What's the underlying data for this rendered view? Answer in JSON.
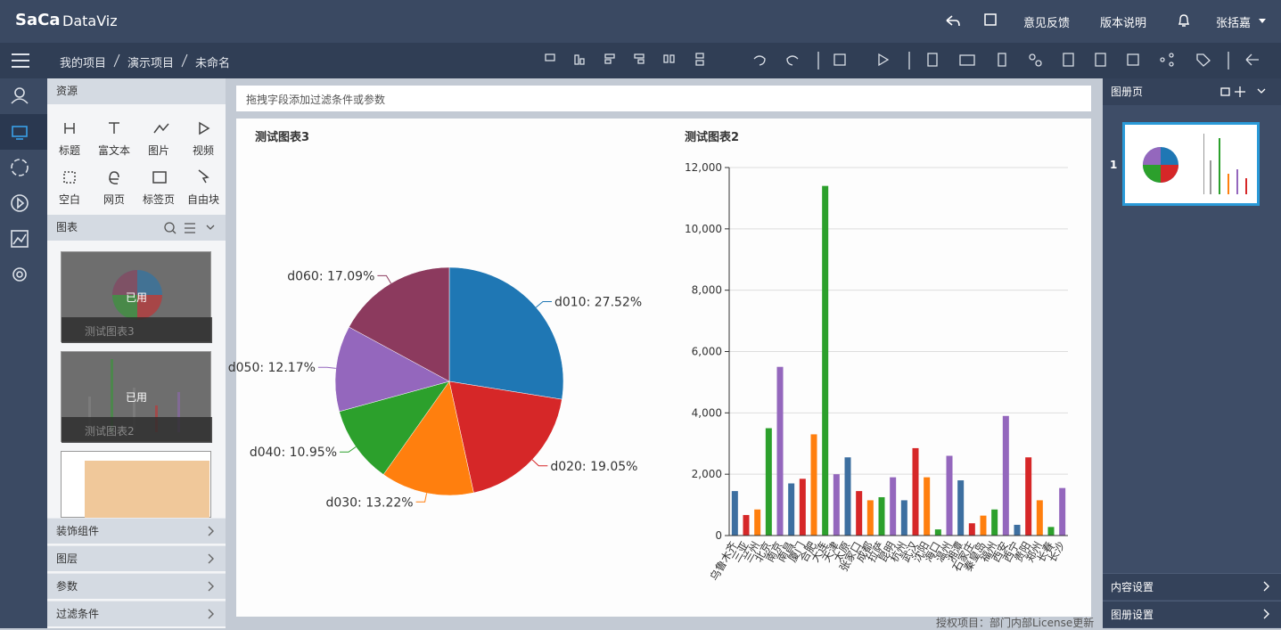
{
  "header": {
    "logo": "SaCa",
    "product": "DataViz",
    "links": [
      "意见反馈",
      "版本说明"
    ],
    "user": "张括嘉"
  },
  "breadcrumb": [
    "我的项目",
    "演示项目",
    "未命名"
  ],
  "resources": {
    "title": "资源",
    "items": [
      "标题",
      "富文本",
      "图片",
      "视频",
      "空白",
      "网页",
      "标签页",
      "自由块"
    ]
  },
  "charts_panel": {
    "title": "图表",
    "thumbnails": [
      {
        "badge": "已用",
        "name": "测试图表3"
      },
      {
        "badge": "已用",
        "name": "测试图表2"
      }
    ]
  },
  "sections": [
    "装饰组件",
    "图层",
    "参数",
    "过滤条件"
  ],
  "filter_hint": "拖拽字段添加过滤条件或参数",
  "album": {
    "title": "图册页",
    "page": 1,
    "settings": [
      "内容设置",
      "图册设置"
    ]
  },
  "footer": "授权项目：部门内部License更新",
  "chart_data": [
    {
      "type": "pie",
      "title": "测试图表3",
      "values": [
        27.52,
        19.05,
        13.22,
        10.95,
        12.17,
        17.09
      ],
      "value_labels": [
        "d010: 27.52%",
        "d020: 19.05%",
        "d030: 13.22%",
        "d040: 10.95%",
        "d050: 12.17%",
        "d060: 17.09%"
      ],
      "colors": [
        "#1f77b4",
        "#d62728",
        "#ff7f0e",
        "#2ca02c",
        "#9467bd",
        "#8c3a5e"
      ]
    },
    {
      "type": "bar",
      "title": "测试图表2",
      "categories": [
        "乌鲁木齐",
        "三亚",
        "兰州",
        "北京",
        "南京",
        "南昌",
        "厦门",
        "合肥",
        "大连",
        "天津",
        "太原",
        "张家口",
        "成都",
        "拉萨",
        "昆明",
        "杭州",
        "武汉",
        "沈阳",
        "海口",
        "温州",
        "湘潭",
        "石家庄",
        "秦皇岛",
        "福州",
        "西安",
        "西宁",
        "贵阳",
        "郑州",
        "长春",
        "长沙"
      ],
      "values": [
        1450,
        670,
        850,
        3500,
        5500,
        1700,
        1850,
        3300,
        11400,
        2000,
        2550,
        1450,
        1150,
        1250,
        1900,
        1150,
        2850,
        1900,
        200,
        2600,
        1800,
        400,
        650,
        850,
        3900,
        350,
        2550,
        1150,
        280,
        1550
      ],
      "colors": [
        "#3d6fa0",
        "#d62728",
        "#ff7f0e",
        "#2ca02c",
        "#9467bd"
      ],
      "ylim": [
        0,
        12000
      ],
      "yticks": [
        0,
        {
          "value": 2000,
          "label": "2,000"
        },
        {
          "value": 4000,
          "label": "4,000"
        },
        {
          "value": 6000,
          "label": "6,000"
        },
        {
          "value": 8000,
          "label": "8,000"
        },
        {
          "value": 10000,
          "label": "10,000"
        },
        {
          "value": 12000,
          "label": "12,000"
        }
      ],
      "grid": true
    }
  ]
}
